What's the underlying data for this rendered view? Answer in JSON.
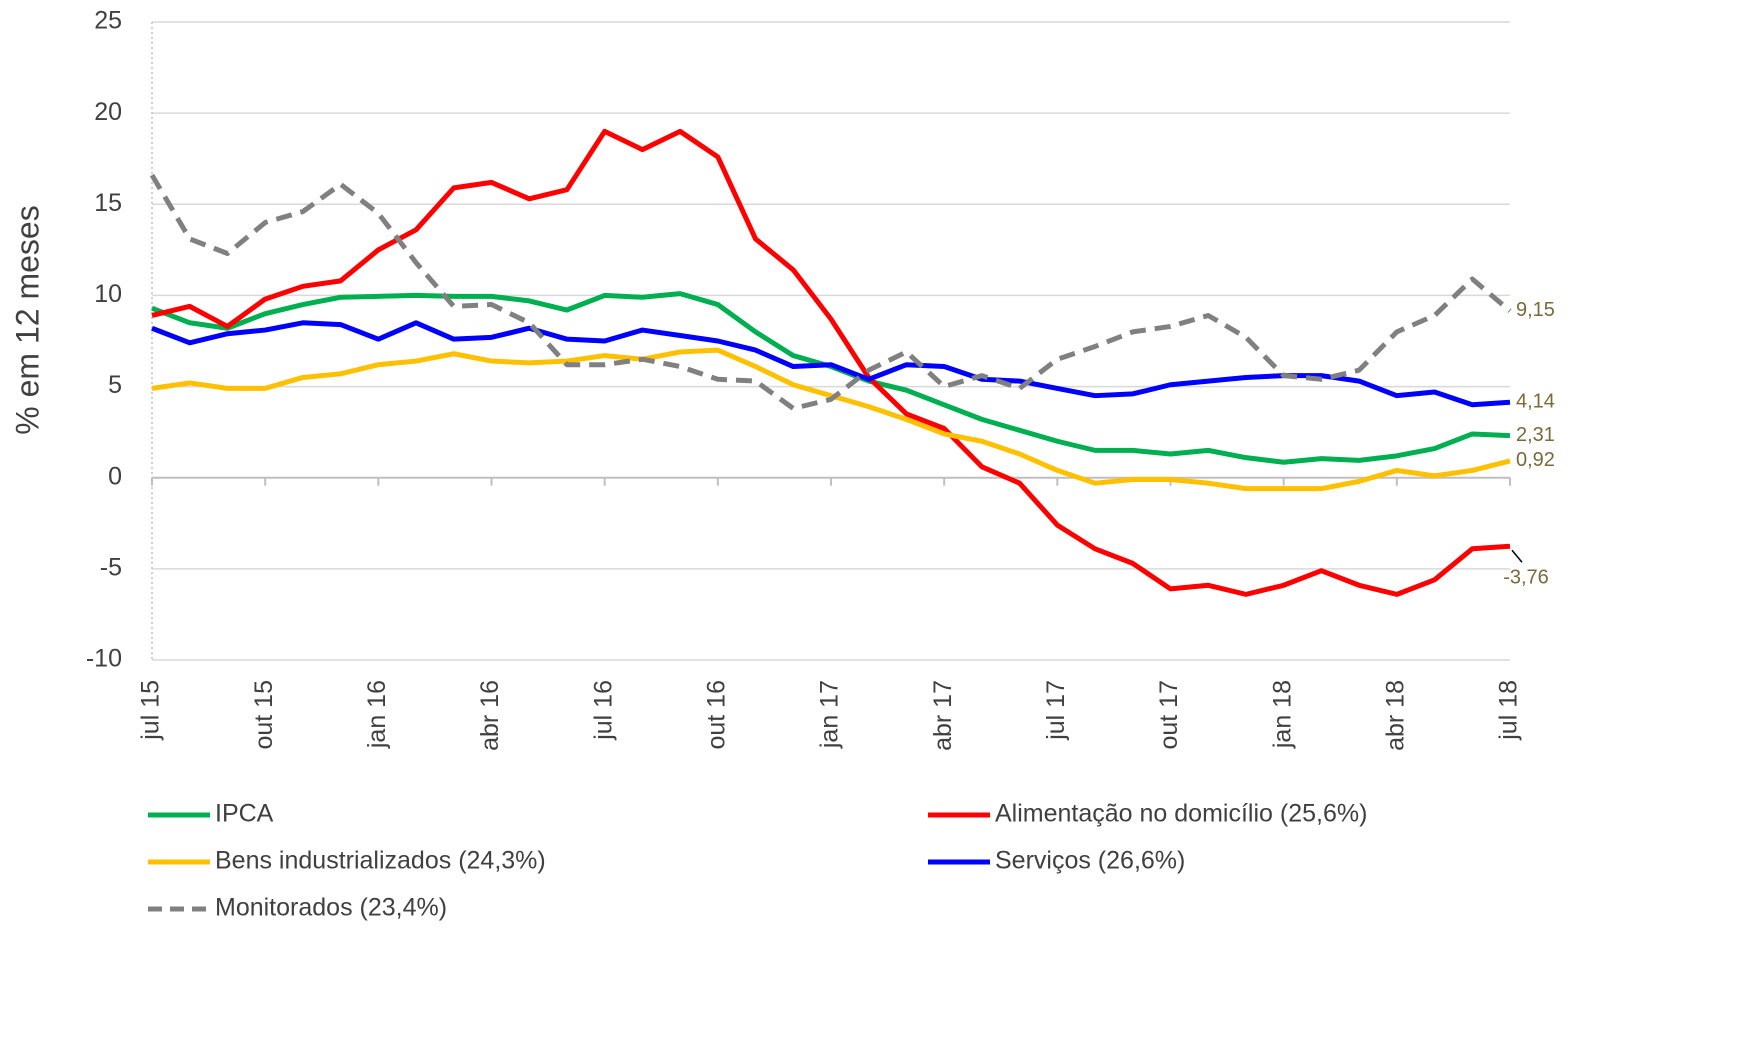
{
  "chart_data": {
    "type": "line",
    "y_label": "% em 12 meses",
    "categories": [
      "jul 15",
      null,
      null,
      "out 15",
      null,
      null,
      "jan 16",
      null,
      null,
      "abr 16",
      null,
      null,
      "jul 16",
      null,
      null,
      "out 16",
      null,
      null,
      "jan 17",
      null,
      null,
      "abr 17",
      null,
      null,
      "jul 17",
      null,
      null,
      "out 17",
      null,
      null,
      "jan 18",
      null,
      null,
      "abr 18",
      null,
      null,
      "jul 18"
    ],
    "ylim": [
      -10,
      25
    ],
    "yticks": [
      -10,
      -5,
      0,
      5,
      10,
      15,
      20,
      25
    ],
    "grid": true,
    "series": [
      {
        "name": "IPCA",
        "color": "#00b050",
        "dashed": false,
        "values": [
          9.3,
          8.5,
          8.2,
          9.0,
          9.5,
          9.9,
          9.95,
          10.0,
          9.95,
          9.95,
          9.7,
          9.2,
          10.0,
          9.9,
          10.1,
          9.5,
          8.0,
          6.7,
          6.1,
          5.3,
          4.8,
          4.0,
          3.2,
          2.6,
          2.0,
          1.5,
          1.5,
          1.3,
          1.5,
          1.1,
          0.85,
          1.05,
          0.95,
          1.2,
          1.6,
          2.4,
          2.31
        ],
        "value_labels": [
          null,
          null,
          null,
          null,
          null,
          null,
          null,
          null,
          null,
          null,
          null,
          null,
          null,
          null,
          null,
          null,
          null,
          null,
          null,
          null,
          null,
          null,
          null,
          null,
          null,
          null,
          null,
          null,
          null,
          null,
          null,
          null,
          null,
          null,
          null,
          null,
          "2,31"
        ]
      },
      {
        "name": "Alimentação no domicílio (25,6%)",
        "color": "#ff0000",
        "dashed": false,
        "values": [
          8.9,
          9.4,
          8.3,
          9.8,
          10.5,
          10.8,
          12.5,
          13.6,
          15.9,
          16.2,
          15.3,
          15.8,
          19.0,
          18.0,
          19.0,
          17.6,
          13.1,
          11.4,
          8.7,
          5.5,
          3.5,
          2.7,
          0.6,
          -0.3,
          -2.6,
          -3.9,
          -4.7,
          -6.1,
          -5.9,
          -6.4,
          -5.9,
          -5.1,
          -5.9,
          -6.4,
          -5.6,
          -3.9,
          -3.76
        ],
        "value_labels": [
          null,
          null,
          null,
          null,
          null,
          null,
          null,
          null,
          null,
          null,
          null,
          null,
          null,
          null,
          null,
          null,
          null,
          null,
          null,
          null,
          null,
          null,
          null,
          null,
          null,
          null,
          null,
          null,
          null,
          null,
          null,
          null,
          null,
          null,
          null,
          null,
          "-3,76"
        ]
      },
      {
        "name": "Bens industrializados (24,3%)",
        "color": "#ffc000",
        "dashed": false,
        "values": [
          4.9,
          5.2,
          4.9,
          4.9,
          5.5,
          5.7,
          6.2,
          6.4,
          6.8,
          6.4,
          6.3,
          6.4,
          6.7,
          6.5,
          6.9,
          7.0,
          6.1,
          5.1,
          4.5,
          3.9,
          3.2,
          2.4,
          2.0,
          1.3,
          0.4,
          -0.3,
          -0.1,
          -0.1,
          -0.3,
          -0.6,
          -0.6,
          -0.6,
          -0.2,
          0.4,
          0.1,
          0.4,
          0.92
        ],
        "value_labels": [
          null,
          null,
          null,
          null,
          null,
          null,
          null,
          null,
          null,
          null,
          null,
          null,
          null,
          null,
          null,
          null,
          null,
          null,
          null,
          null,
          null,
          null,
          null,
          null,
          null,
          null,
          null,
          null,
          null,
          null,
          null,
          null,
          null,
          null,
          null,
          null,
          "0,92"
        ]
      },
      {
        "name": "Serviços (26,6%)",
        "color": "#0000ff",
        "dashed": false,
        "values": [
          8.2,
          7.4,
          7.9,
          8.1,
          8.5,
          8.4,
          7.6,
          8.5,
          7.6,
          7.7,
          8.2,
          7.6,
          7.5,
          8.1,
          7.8,
          7.5,
          7.0,
          6.1,
          6.2,
          5.4,
          6.2,
          6.1,
          5.4,
          5.3,
          4.9,
          4.5,
          4.6,
          5.1,
          5.3,
          5.5,
          5.6,
          5.6,
          5.3,
          4.5,
          4.7,
          4.0,
          4.14
        ],
        "value_labels": [
          null,
          null,
          null,
          null,
          null,
          null,
          null,
          null,
          null,
          null,
          null,
          null,
          null,
          null,
          null,
          null,
          null,
          null,
          null,
          null,
          null,
          null,
          null,
          null,
          null,
          null,
          null,
          null,
          null,
          null,
          null,
          null,
          null,
          null,
          null,
          null,
          "4,14"
        ]
      },
      {
        "name": "Monitorados (23,4%)",
        "color": "#808080",
        "dashed": true,
        "values": [
          16.6,
          13.1,
          12.3,
          14.0,
          14.6,
          16.1,
          14.5,
          11.8,
          9.4,
          9.5,
          8.5,
          6.2,
          6.2,
          6.5,
          6.1,
          5.4,
          5.3,
          3.8,
          4.3,
          5.9,
          6.9,
          5.0,
          5.6,
          4.9,
          6.5,
          7.2,
          8.0,
          8.3,
          8.9,
          7.7,
          5.6,
          5.4,
          5.9,
          8.0,
          8.9,
          10.9,
          9.15
        ],
        "value_labels": [
          null,
          null,
          null,
          null,
          null,
          null,
          null,
          null,
          null,
          null,
          null,
          null,
          null,
          null,
          null,
          null,
          null,
          null,
          null,
          null,
          null,
          null,
          null,
          null,
          null,
          null,
          null,
          null,
          null,
          null,
          null,
          null,
          null,
          null,
          null,
          null,
          "9,15"
        ]
      }
    ]
  }
}
